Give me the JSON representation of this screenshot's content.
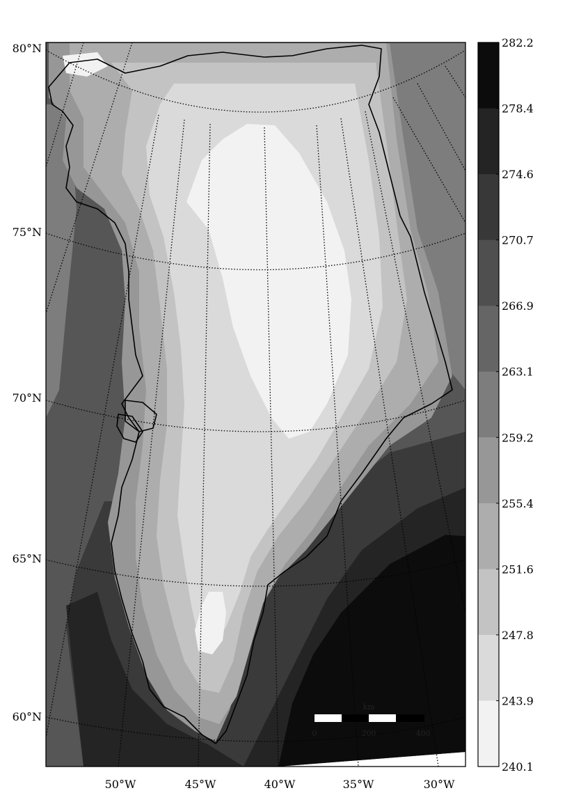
{
  "map": {
    "latitude_labels": [
      "80°N",
      "75°N",
      "70°N",
      "65°N",
      "60°N"
    ],
    "longitude_labels": [
      "50°W",
      "45°W",
      "40°W",
      "35°W",
      "30°W"
    ]
  },
  "colorbar": {
    "ticks": [
      "282.2",
      "278.4",
      "274.6",
      "270.7",
      "266.9",
      "263.1",
      "259.2",
      "255.4",
      "251.6",
      "247.8",
      "243.9",
      "240.1"
    ],
    "colors": [
      "#0c0c0c",
      "#242424",
      "#383838",
      "#4f4f4f",
      "#656565",
      "#7d7d7d",
      "#979797",
      "#adadad",
      "#c3c3c3",
      "#dadada",
      "#f2f2f2"
    ]
  },
  "scale_bar": {
    "unit": "km",
    "labels": [
      "0",
      "200",
      "400"
    ]
  }
}
